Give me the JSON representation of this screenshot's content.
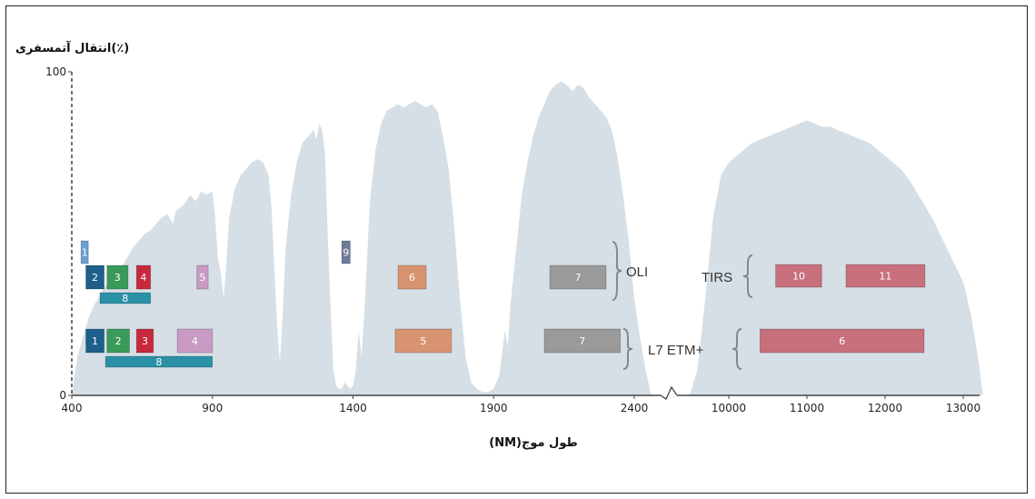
{
  "chart_data": {
    "type": "area",
    "ylabel": "انتقال آتمسفری(٪)",
    "xlabel": "(NM)طول موج",
    "ylim": [
      0,
      100
    ],
    "y_ticks": [
      "0",
      "100"
    ],
    "x_ticks_left": [
      "400",
      "900",
      "1400",
      "1900",
      "2400"
    ],
    "x_ticks_right": [
      "10000",
      "11000",
      "12000",
      "13000"
    ],
    "axis_break": "2400 / 10000",
    "colors": {
      "transmission_fill": "#d6dfe6",
      "axis": "#444444",
      "band_1_blue": "#1f5f8b",
      "band_2_green": "#3a9a5a",
      "band_3_red": "#c8283c",
      "band_pan_cyan": "#2a91a6",
      "band_coastal": "#6a9fd0",
      "band_nir_pink": "#c99bc4",
      "band_swir_orange": "#d89470",
      "band_swir2_gray": "#9a9a9a",
      "band_cirrus": "#6f7a99",
      "band_thermal": "#c7707c"
    },
    "transmission_left": [
      [
        400,
        0
      ],
      [
        420,
        12
      ],
      [
        440,
        18
      ],
      [
        460,
        24
      ],
      [
        480,
        28
      ],
      [
        500,
        31
      ],
      [
        520,
        34
      ],
      [
        540,
        36
      ],
      [
        560,
        38
      ],
      [
        580,
        40
      ],
      [
        600,
        43
      ],
      [
        620,
        46
      ],
      [
        640,
        48
      ],
      [
        660,
        50
      ],
      [
        680,
        51
      ],
      [
        700,
        53
      ],
      [
        720,
        55
      ],
      [
        740,
        56
      ],
      [
        760,
        53
      ],
      [
        770,
        57
      ],
      [
        800,
        59
      ],
      [
        820,
        62
      ],
      [
        840,
        60
      ],
      [
        860,
        63
      ],
      [
        880,
        62
      ],
      [
        900,
        63
      ],
      [
        910,
        55
      ],
      [
        920,
        42
      ],
      [
        930,
        38
      ],
      [
        940,
        30
      ],
      [
        950,
        41
      ],
      [
        960,
        55
      ],
      [
        980,
        64
      ],
      [
        1000,
        68
      ],
      [
        1020,
        70
      ],
      [
        1040,
        72
      ],
      [
        1060,
        73
      ],
      [
        1080,
        72
      ],
      [
        1100,
        68
      ],
      [
        1110,
        58
      ],
      [
        1120,
        40
      ],
      [
        1130,
        22
      ],
      [
        1140,
        10
      ],
      [
        1150,
        25
      ],
      [
        1160,
        45
      ],
      [
        1180,
        62
      ],
      [
        1200,
        72
      ],
      [
        1220,
        78
      ],
      [
        1240,
        80
      ],
      [
        1260,
        82
      ],
      [
        1270,
        79
      ],
      [
        1280,
        84
      ],
      [
        1290,
        82
      ],
      [
        1300,
        75
      ],
      [
        1310,
        50
      ],
      [
        1320,
        28
      ],
      [
        1330,
        8
      ],
      [
        1340,
        3
      ],
      [
        1350,
        2
      ],
      [
        1360,
        2
      ],
      [
        1370,
        4
      ],
      [
        1380,
        3
      ],
      [
        1390,
        2
      ],
      [
        1400,
        3
      ],
      [
        1410,
        8
      ],
      [
        1420,
        20
      ],
      [
        1430,
        12
      ],
      [
        1440,
        25
      ],
      [
        1460,
        60
      ],
      [
        1480,
        76
      ],
      [
        1500,
        84
      ],
      [
        1520,
        88
      ],
      [
        1540,
        89
      ],
      [
        1560,
        90
      ],
      [
        1580,
        89
      ],
      [
        1600,
        90
      ],
      [
        1620,
        91
      ],
      [
        1640,
        90
      ],
      [
        1660,
        89
      ],
      [
        1680,
        90
      ],
      [
        1700,
        88
      ],
      [
        1710,
        84
      ],
      [
        1720,
        80
      ],
      [
        1740,
        70
      ],
      [
        1760,
        52
      ],
      [
        1780,
        30
      ],
      [
        1800,
        12
      ],
      [
        1820,
        4
      ],
      [
        1840,
        2
      ],
      [
        1860,
        1
      ],
      [
        1880,
        1
      ],
      [
        1900,
        2
      ],
      [
        1920,
        6
      ],
      [
        1940,
        20
      ],
      [
        1950,
        15
      ],
      [
        1960,
        28
      ],
      [
        1980,
        45
      ],
      [
        2000,
        62
      ],
      [
        2020,
        72
      ],
      [
        2040,
        80
      ],
      [
        2060,
        86
      ],
      [
        2080,
        90
      ],
      [
        2100,
        94
      ],
      [
        2120,
        96
      ],
      [
        2140,
        97
      ],
      [
        2160,
        96
      ],
      [
        2180,
        94
      ],
      [
        2200,
        96
      ],
      [
        2220,
        95
      ],
      [
        2240,
        92
      ],
      [
        2260,
        90
      ],
      [
        2280,
        88
      ],
      [
        2300,
        86
      ],
      [
        2320,
        82
      ],
      [
        2340,
        74
      ],
      [
        2360,
        62
      ],
      [
        2380,
        48
      ],
      [
        2400,
        30
      ],
      [
        2420,
        18
      ],
      [
        2440,
        8
      ],
      [
        2460,
        0
      ]
    ],
    "transmission_right": [
      [
        9500,
        0
      ],
      [
        9600,
        8
      ],
      [
        9700,
        30
      ],
      [
        9800,
        55
      ],
      [
        9900,
        68
      ],
      [
        10000,
        72
      ],
      [
        10100,
        74
      ],
      [
        10200,
        76
      ],
      [
        10300,
        78
      ],
      [
        10400,
        79
      ],
      [
        10500,
        80
      ],
      [
        10600,
        81
      ],
      [
        10700,
        82
      ],
      [
        10800,
        83
      ],
      [
        10900,
        84
      ],
      [
        11000,
        85
      ],
      [
        11100,
        84
      ],
      [
        11200,
        83
      ],
      [
        11300,
        83
      ],
      [
        11400,
        82
      ],
      [
        11500,
        81
      ],
      [
        11600,
        80
      ],
      [
        11700,
        79
      ],
      [
        11800,
        78
      ],
      [
        11900,
        76
      ],
      [
        12000,
        74
      ],
      [
        12100,
        72
      ],
      [
        12200,
        70
      ],
      [
        12300,
        67
      ],
      [
        12400,
        63
      ],
      [
        12500,
        59
      ],
      [
        12600,
        55
      ],
      [
        12700,
        50
      ],
      [
        12800,
        45
      ],
      [
        12900,
        40
      ],
      [
        13000,
        35
      ],
      [
        13100,
        25
      ],
      [
        13200,
        10
      ],
      [
        13250,
        0
      ]
    ],
    "sensors": [
      {
        "name": "OLI",
        "bands": [
          {
            "label": "1",
            "start": 433,
            "end": 453,
            "row": "top",
            "color": "#6a9fd0"
          },
          {
            "label": "2",
            "start": 450,
            "end": 515,
            "row": "mid",
            "color": "#1f5f8b"
          },
          {
            "label": "3",
            "start": 525,
            "end": 600,
            "row": "mid",
            "color": "#3a9a5a"
          },
          {
            "label": "4",
            "start": 630,
            "end": 680,
            "row": "mid",
            "color": "#c8283c"
          },
          {
            "label": "8",
            "start": 500,
            "end": 680,
            "row": "low",
            "color": "#2a91a6"
          },
          {
            "label": "5",
            "start": 845,
            "end": 885,
            "row": "mid",
            "color": "#c99bc4"
          },
          {
            "label": "9",
            "start": 1360,
            "end": 1390,
            "row": "top",
            "color": "#6f7a99"
          },
          {
            "label": "6",
            "start": 1560,
            "end": 1660,
            "row": "mid",
            "color": "#d89470"
          },
          {
            "label": "7",
            "start": 2100,
            "end": 2300,
            "row": "mid",
            "color": "#9a9a9a"
          }
        ]
      },
      {
        "name": "L7 ETM+",
        "bands": [
          {
            "label": "1",
            "start": 450,
            "end": 515,
            "row": "mid",
            "color": "#1f5f8b"
          },
          {
            "label": "2",
            "start": 525,
            "end": 605,
            "row": "mid",
            "color": "#3a9a5a"
          },
          {
            "label": "3",
            "start": 630,
            "end": 690,
            "row": "mid",
            "color": "#c8283c"
          },
          {
            "label": "8",
            "start": 520,
            "end": 900,
            "row": "low",
            "color": "#2a91a6"
          },
          {
            "label": "4",
            "start": 775,
            "end": 900,
            "row": "mid",
            "color": "#c99bc4"
          },
          {
            "label": "5",
            "start": 1550,
            "end": 1750,
            "row": "mid",
            "color": "#d89470"
          },
          {
            "label": "7",
            "start": 2080,
            "end": 2350,
            "row": "mid",
            "color": "#9a9a9a"
          }
        ]
      },
      {
        "name": "TIRS",
        "bands": [
          {
            "label": "10",
            "start": 10600,
            "end": 11190,
            "row": "mid",
            "color": "#c7707c"
          },
          {
            "label": "11",
            "start": 11500,
            "end": 12510,
            "row": "mid",
            "color": "#c7707c"
          }
        ]
      },
      {
        "name": "",
        "bands": [
          {
            "label": "6",
            "start": 10400,
            "end": 12500,
            "row": "mid",
            "color": "#c7707c"
          }
        ]
      }
    ]
  }
}
